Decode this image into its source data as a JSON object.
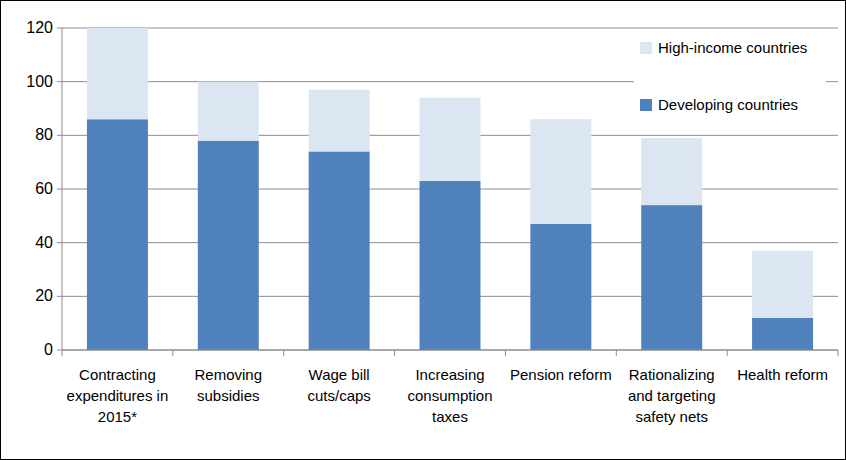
{
  "chart_data": {
    "type": "bar",
    "stacked": true,
    "grid": true,
    "legend": "top-right",
    "categories": [
      "Contracting expenditures in 2015*",
      "Removing subsidies",
      "Wage bill cuts/caps",
      "Increasing consumption taxes",
      "Pension reform",
      "Rationalizing and targeting safety nets",
      "Health reform"
    ],
    "series": [
      {
        "name": "Developing countries",
        "color": "#4f81bd",
        "values": [
          86,
          78,
          74,
          63,
          47,
          54,
          12
        ]
      },
      {
        "name": "High-income countries",
        "color": "#dce6f2",
        "values": [
          34,
          22,
          23,
          31,
          39,
          25,
          25
        ]
      }
    ],
    "ylim": [
      0,
      120
    ],
    "yticks": [
      0,
      20,
      40,
      60,
      80,
      100,
      120
    ]
  }
}
